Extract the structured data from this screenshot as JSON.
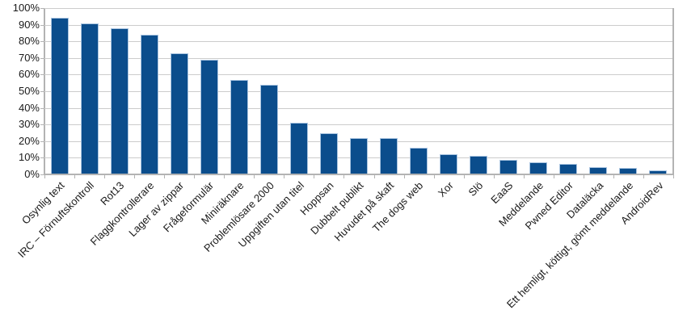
{
  "chart_data": {
    "type": "bar",
    "title": "",
    "xlabel": "",
    "ylabel": "",
    "categories": [
      "Osynlig text",
      "IRC – Förnuftskontroll",
      "Rot13",
      "Flaggkontrollerare",
      "Lager av zippar",
      "Frågeformulär",
      "Miniräknare",
      "Problemlösare 2000",
      "Uppgiften utan titel",
      "Hoppsan",
      "Dubbelt publikt",
      "Huvudet på skaft",
      "The dogs web",
      "Xor",
      "Slö",
      "EaaS",
      "Meddelande",
      "Pwned Editor",
      "Dataläcka",
      "Ett hemligt, köttigt, gömt meddelande",
      "AndroidRev"
    ],
    "values": [
      94,
      91,
      88,
      84,
      73,
      69,
      57,
      54,
      31,
      25,
      22,
      22,
      16,
      12,
      11,
      8.5,
      7.5,
      6.5,
      4.5,
      4,
      2.5
    ],
    "ylim": [
      0,
      100
    ],
    "ytick_step": 10,
    "ytick_labels": [
      "0%",
      "10%",
      "20%",
      "30%",
      "40%",
      "50%",
      "60%",
      "70%",
      "80%",
      "90%",
      "100%"
    ],
    "grid": true,
    "legend": "none",
    "colors": {
      "bar_fill": "#0b4d8c",
      "bar_border": "#a9c4e0",
      "gridline": "#cccccc",
      "axis": "#b3b3b3",
      "label_text": "#1a1a1a",
      "background": "#ffffff"
    }
  }
}
